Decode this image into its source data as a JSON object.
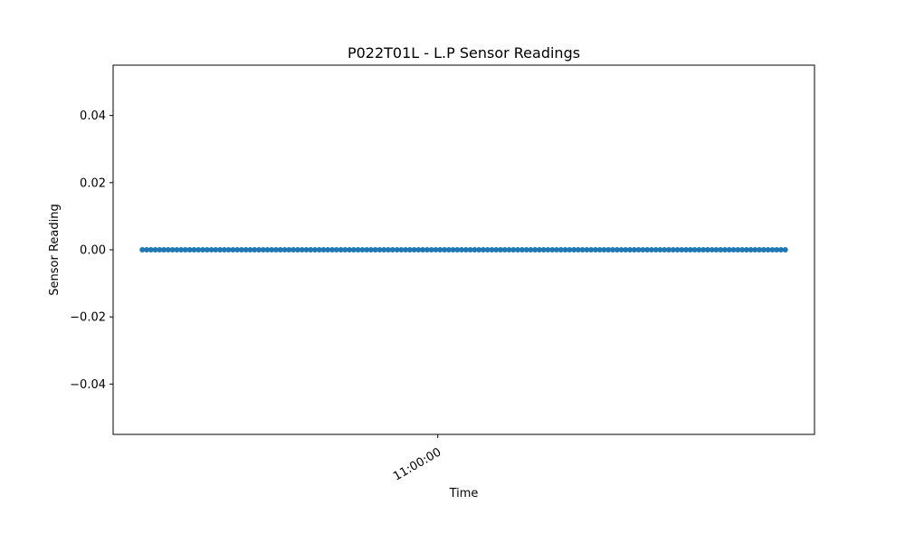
{
  "chart_data": {
    "type": "line",
    "title": "P022T01L - L.P Sensor Readings",
    "xlabel": "Time",
    "ylabel": "Sensor Reading",
    "ylim": [
      -0.055,
      0.055
    ],
    "yticks": [
      {
        "value": 0.04,
        "label": "0.04"
      },
      {
        "value": 0.02,
        "label": "0.02"
      },
      {
        "value": 0.0,
        "label": "0.00"
      },
      {
        "value": -0.02,
        "label": "−0.02"
      },
      {
        "value": -0.04,
        "label": "−0.04"
      }
    ],
    "xticks": [
      {
        "value": "11:00:00",
        "label": "11:00:00"
      }
    ],
    "series": [
      {
        "color": "#1f77b4",
        "marker": "circle",
        "x_start": "10:59:09",
        "x_end": "11:01:00",
        "point_count": 150,
        "y_constant": 0.0
      }
    ],
    "grid": false,
    "legend": "none"
  }
}
